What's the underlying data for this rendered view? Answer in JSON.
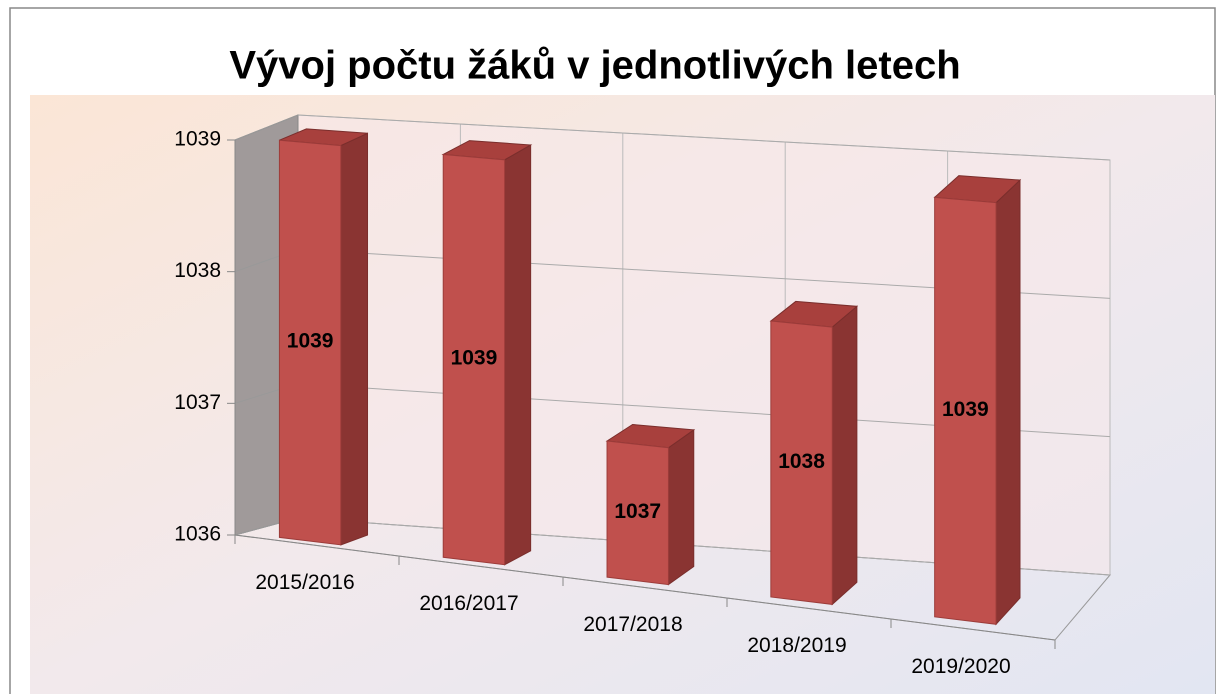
{
  "chart_data": {
    "type": "bar3d",
    "title": "Vývoj počtu žáků v jednotlivých letech",
    "categories": [
      "2015/2016",
      "2016/2017",
      "2017/2018",
      "2018/2019",
      "2019/2020"
    ],
    "values": [
      1039,
      1039,
      1037,
      1038,
      1039
    ],
    "color": "#c0504d",
    "ylim": [
      1036,
      1039
    ],
    "yticks": [
      1036,
      1037,
      1038,
      1039
    ],
    "grid": true
  }
}
